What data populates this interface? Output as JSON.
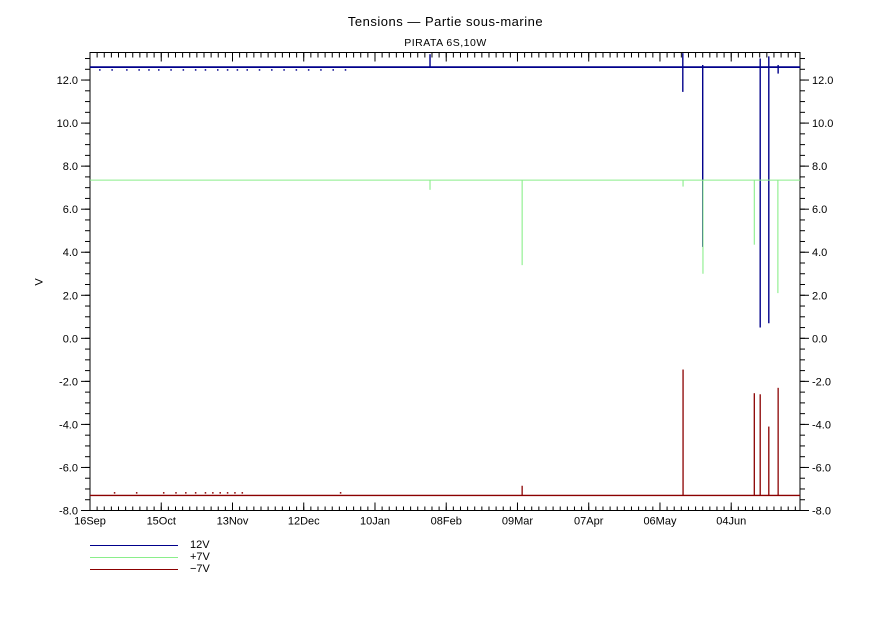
{
  "title": "Tensions — Partie sous-marine",
  "subtitle": "PIRATA 6S,10W",
  "y_axis_title": "V",
  "colors": {
    "axis": "#000000",
    "v12": "#00008B",
    "p7": "#8AEE8A",
    "m7": "#8B0000",
    "background": "#FFFFFF"
  },
  "legend": [
    {
      "label": "12V",
      "color": "#00008B",
      "lw": 1.8
    },
    {
      "label": "+7V",
      "color": "#8AEE8A",
      "lw": 1.1
    },
    {
      "label": "−7V",
      "color": "#8B0000",
      "lw": 1.3
    }
  ],
  "chart_data": {
    "type": "line",
    "title": "Tensions — Partie sous-marine",
    "subtitle": "PIRATA 6S,10W",
    "xlabel": "",
    "ylabel": "V",
    "grid": false,
    "legend_position": "below-left",
    "ylim": [
      -8.0,
      13.28
    ],
    "xlim": [
      0,
      289
    ],
    "x_unit": "days since first tick (major ticks every 29 days)",
    "x_major_ticks": [
      {
        "day": 0,
        "label": "16Sep"
      },
      {
        "day": 29,
        "label": "15Oct"
      },
      {
        "day": 58,
        "label": "13Nov"
      },
      {
        "day": 87,
        "label": "12Dec"
      },
      {
        "day": 116,
        "label": "10Jan"
      },
      {
        "day": 145,
        "label": "08Feb"
      },
      {
        "day": 174,
        "label": "09Mar"
      },
      {
        "day": 203,
        "label": "07Apr"
      },
      {
        "day": 232,
        "label": "06May"
      },
      {
        "day": 261,
        "label": "04Jun"
      }
    ],
    "x_minor_step": 2.9,
    "y_major_step": 2.0,
    "y_minor_step": 0.5,
    "y_major_ticks": [
      -8.0,
      -6.0,
      -4.0,
      -2.0,
      0.0,
      2.0,
      4.0,
      6.0,
      8.0,
      10.0,
      12.0
    ],
    "series": [
      {
        "name": "12V",
        "color": "#00008B",
        "lw": 1.8,
        "spike_lw": 1.4,
        "baseline": 12.6,
        "spikes": [
          {
            "d": 138.4,
            "lo": 12.6,
            "hi": 13.2
          },
          {
            "d": 241.3,
            "lo": 11.45,
            "hi": 13.25
          },
          {
            "d": 249.4,
            "lo": 4.25,
            "hi": 12.7
          },
          {
            "d": 272.8,
            "lo": 0.5,
            "hi": 13.0
          },
          {
            "d": 276.3,
            "lo": 0.7,
            "hi": 13.1
          },
          {
            "d": 280.1,
            "lo": 12.3,
            "hi": 12.7
          }
        ],
        "noise_v": 12.47,
        "noise_days": [
          4,
          9,
          15,
          20,
          24,
          28,
          33,
          38,
          43,
          47,
          52,
          56,
          60,
          64,
          69,
          74,
          79,
          84,
          89,
          94,
          99,
          104
        ]
      },
      {
        "name": "+7V",
        "color": "#8AEE8A",
        "lw": 1.1,
        "spike_lw": 1.1,
        "baseline": 7.35,
        "spikes": [
          {
            "d": 138.4,
            "lo": 6.9,
            "hi": 7.35
          },
          {
            "d": 175.9,
            "lo": 3.4,
            "hi": 7.35
          },
          {
            "d": 241.4,
            "lo": 7.05,
            "hi": 7.35
          },
          {
            "d": 249.5,
            "lo": 3.0,
            "hi": 7.35
          },
          {
            "d": 270.4,
            "lo": 4.35,
            "hi": 7.35
          },
          {
            "d": 280.0,
            "lo": 2.1,
            "hi": 7.35
          }
        ],
        "noise_v": null,
        "noise_days": []
      },
      {
        "name": "−7V",
        "color": "#8B0000",
        "lw": 1.3,
        "spike_lw": 1.3,
        "baseline": -7.3,
        "spikes": [
          {
            "d": 175.9,
            "lo": -7.3,
            "hi": -6.85
          },
          {
            "d": 241.4,
            "lo": -7.3,
            "hi": -1.45
          },
          {
            "d": 270.4,
            "lo": -7.3,
            "hi": -2.55
          },
          {
            "d": 272.8,
            "lo": -7.3,
            "hi": -2.6
          },
          {
            "d": 276.3,
            "lo": -7.3,
            "hi": -4.1
          },
          {
            "d": 280.1,
            "lo": -7.3,
            "hi": -2.3
          }
        ],
        "noise_v": -7.18,
        "noise_days": [
          10,
          19,
          30,
          35,
          39,
          43,
          47,
          50,
          53,
          56,
          59,
          62,
          102
        ]
      }
    ]
  }
}
